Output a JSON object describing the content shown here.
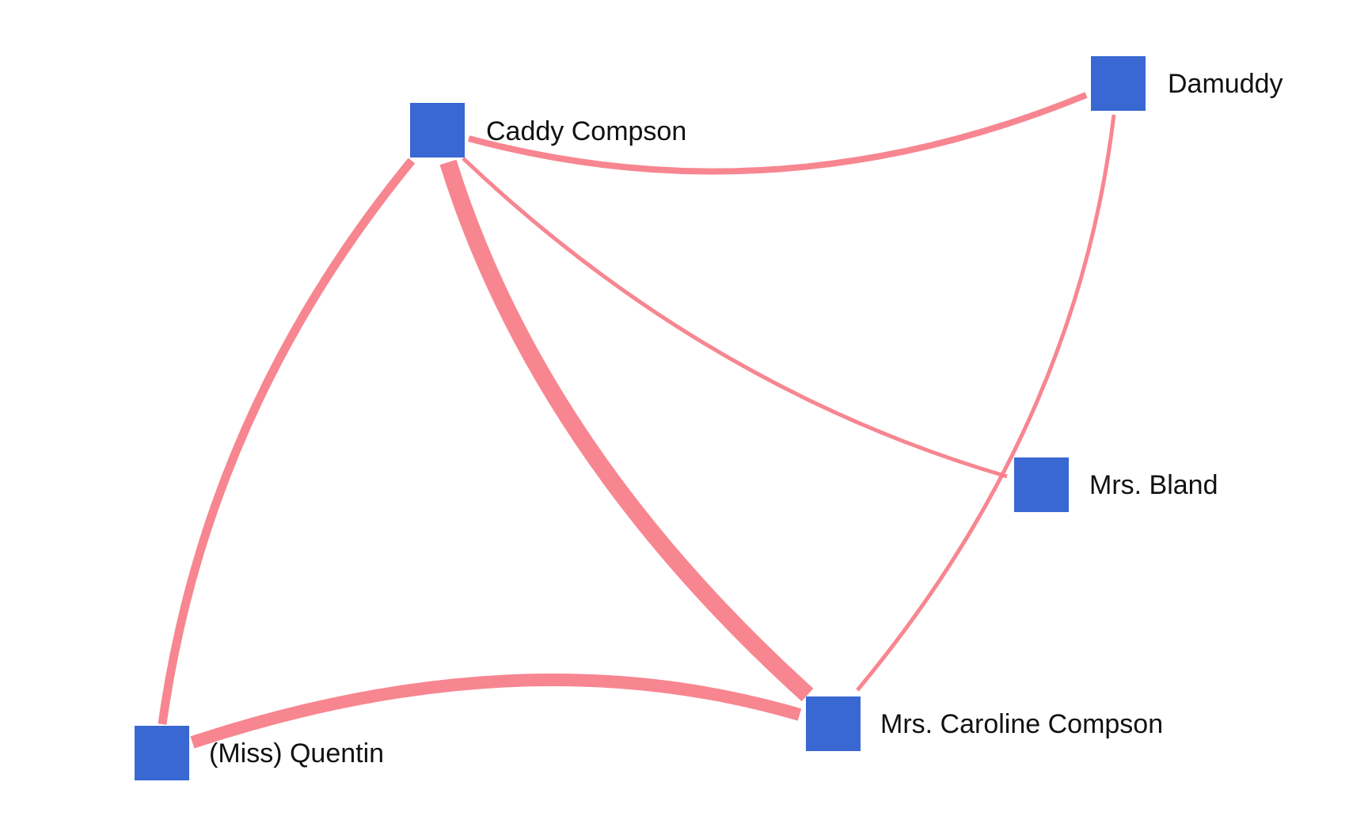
{
  "colors": {
    "node": "#3a68d2",
    "edge": "#f7808a",
    "background": "#ffffff"
  },
  "nodes": [
    {
      "id": "caddy",
      "label": "Caddy Compson",
      "shape": "square"
    },
    {
      "id": "damuddy",
      "label": "Damuddy",
      "shape": "square"
    },
    {
      "id": "bland",
      "label": "Mrs. Bland",
      "shape": "square"
    },
    {
      "id": "caroline",
      "label": "Mrs. Caroline Compson",
      "shape": "square"
    },
    {
      "id": "quentin",
      "label": "(Miss) Quentin",
      "shape": "square"
    }
  ],
  "edges": [
    {
      "from": "caddy",
      "to": "damuddy",
      "weight": 2
    },
    {
      "from": "caddy",
      "to": "quentin",
      "weight": 3
    },
    {
      "from": "caddy",
      "to": "caroline",
      "weight": 6
    },
    {
      "from": "caddy",
      "to": "bland",
      "weight": 1
    },
    {
      "from": "damuddy",
      "to": "caroline",
      "weight": 1
    },
    {
      "from": "quentin",
      "to": "caroline",
      "weight": 4
    }
  ]
}
